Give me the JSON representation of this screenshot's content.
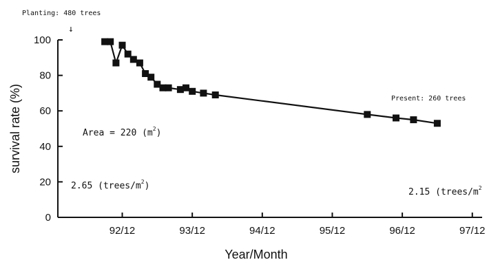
{
  "chart_data": {
    "type": "line",
    "title": "",
    "xlabel": "Year/Month",
    "ylabel": "survival rate (%)",
    "ylim": [
      0,
      100
    ],
    "xlim": [
      1992.0,
      1998.06
    ],
    "yticks": [
      0,
      20,
      40,
      60,
      80,
      100
    ],
    "xticks": [
      {
        "label": "92/12",
        "value": 1992.92
      },
      {
        "label": "93/12",
        "value": 1993.92
      },
      {
        "label": "94/12",
        "value": 1994.92
      },
      {
        "label": "95/12",
        "value": 1995.92
      },
      {
        "label": "96/12",
        "value": 1996.92
      },
      {
        "label": "97/12",
        "value": 1997.92
      }
    ],
    "grid": false,
    "series": [
      {
        "marker": "square",
        "x": [
          1992.67,
          1992.75,
          1992.83,
          1992.92,
          1993.0,
          1993.08,
          1993.17,
          1993.25,
          1993.33,
          1993.42,
          1993.5,
          1993.58,
          1993.75,
          1993.83,
          1993.92,
          1994.08,
          1994.25,
          1996.42,
          1996.83,
          1997.08,
          1997.42
        ],
        "y": [
          99,
          99,
          87,
          97,
          92,
          89,
          87,
          81,
          79,
          75,
          73,
          73,
          72,
          73,
          71,
          70,
          69,
          58,
          56,
          55,
          53
        ]
      }
    ],
    "annotations": {
      "planting": "Planting: 480 trees",
      "present": "Present: 260 trees",
      "area_prefix": "Area = 220 (m",
      "area_sup": "2",
      "area_suffix": ")",
      "density_start_prefix": "2.65 (trees/m",
      "density_start_sup": "2",
      "density_start_suffix": ")",
      "density_end_prefix": "2.15 (trees/m",
      "density_end_sup": "2",
      "arrow": "↓"
    }
  }
}
